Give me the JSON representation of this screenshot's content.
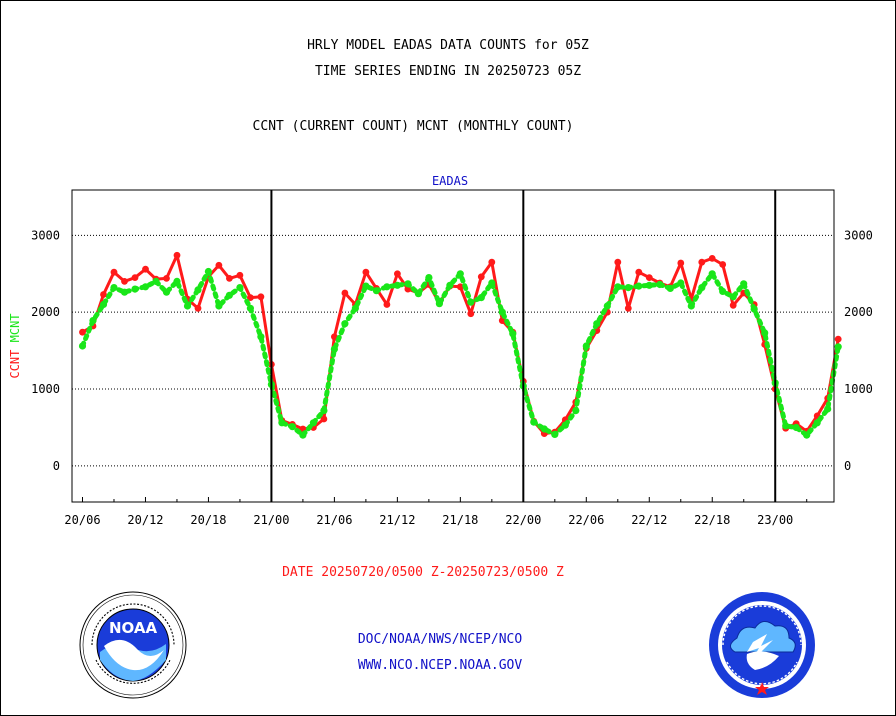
{
  "header": {
    "title_line1": "HRLY MODEL EADAS DATA COUNTS for 05Z",
    "title_line2": "TIME SERIES ENDING IN 20250723 05Z",
    "title_line3": "CCNT (CURRENT COUNT) MCNT (MONTHLY COUNT)"
  },
  "footer": {
    "date_range": "DATE 20250720/0500 Z-20250723/0500 Z",
    "org_path": "DOC/NOAA/NWS/NCEP/NCO",
    "website": "WWW.NCO.NCEP.NOAA.GOV"
  },
  "logos": {
    "left": {
      "icon": "noaa-logo-icon",
      "text": "NOAA"
    },
    "right": {
      "icon": "nws-logo-icon"
    }
  },
  "colors": {
    "ccnt": "#ff1a1a",
    "mcnt": "#19e619",
    "panel_title": "#1010c8",
    "text": "#000000"
  },
  "chart_data": {
    "type": "line",
    "title": "EADAS",
    "ylabel_parts": [
      "CCNT",
      "MCNT"
    ],
    "ylim": [
      -470,
      3590
    ],
    "yticks": [
      0,
      1000,
      2000,
      3000
    ],
    "xlim": [
      -1,
      71.6
    ],
    "xticks": [
      {
        "x": 0,
        "label": "20/06"
      },
      {
        "x": 6,
        "label": "20/12"
      },
      {
        "x": 12,
        "label": "20/18"
      },
      {
        "x": 18,
        "label": "21/00"
      },
      {
        "x": 24,
        "label": "21/06"
      },
      {
        "x": 30,
        "label": "21/12"
      },
      {
        "x": 36,
        "label": "21/18"
      },
      {
        "x": 42,
        "label": "22/00"
      },
      {
        "x": 48,
        "label": "22/06"
      },
      {
        "x": 54,
        "label": "22/12"
      },
      {
        "x": 60,
        "label": "22/18"
      },
      {
        "x": 66,
        "label": "23/00"
      }
    ],
    "day_boundaries": [
      18,
      42,
      66
    ],
    "grid": "horizontal dotted",
    "series": [
      {
        "name": "CCNT",
        "color": "#ff1a1a",
        "style": "solid",
        "values": [
          1740,
          1820,
          2230,
          2520,
          2400,
          2450,
          2560,
          2430,
          2440,
          2740,
          2170,
          2050,
          2460,
          2610,
          2440,
          2480,
          2190,
          2200,
          1320,
          590,
          540,
          480,
          500,
          610,
          1680,
          2250,
          2100,
          2520,
          2310,
          2100,
          2500,
          2300,
          2250,
          2360,
          2120,
          2340,
          2330,
          1980,
          2460,
          2650,
          1890,
          1740,
          1100,
          580,
          420,
          440,
          600,
          830,
          1530,
          1760,
          2000,
          2650,
          2050,
          2520,
          2450,
          2380,
          2330,
          2640,
          2170,
          2650,
          2700,
          2620,
          2090,
          2250,
          2100,
          1580,
          1000,
          490,
          550,
          450,
          650,
          880,
          1650
        ]
      },
      {
        "name": "MCNT",
        "color": "#19e619",
        "style": "dotted",
        "values": [
          1560,
          1890,
          2100,
          2320,
          2260,
          2300,
          2330,
          2400,
          2260,
          2400,
          2080,
          2290,
          2530,
          2080,
          2220,
          2320,
          2050,
          1680,
          1060,
          560,
          510,
          400,
          560,
          720,
          1520,
          1850,
          2050,
          2340,
          2280,
          2330,
          2350,
          2370,
          2240,
          2450,
          2110,
          2350,
          2500,
          2130,
          2190,
          2380,
          2000,
          1720,
          1040,
          570,
          480,
          410,
          530,
          720,
          1560,
          1850,
          2080,
          2330,
          2320,
          2340,
          2350,
          2360,
          2310,
          2380,
          2080,
          2320,
          2500,
          2270,
          2200,
          2370,
          2040,
          1730,
          1080,
          520,
          500,
          400,
          560,
          740,
          1550
        ]
      }
    ]
  }
}
